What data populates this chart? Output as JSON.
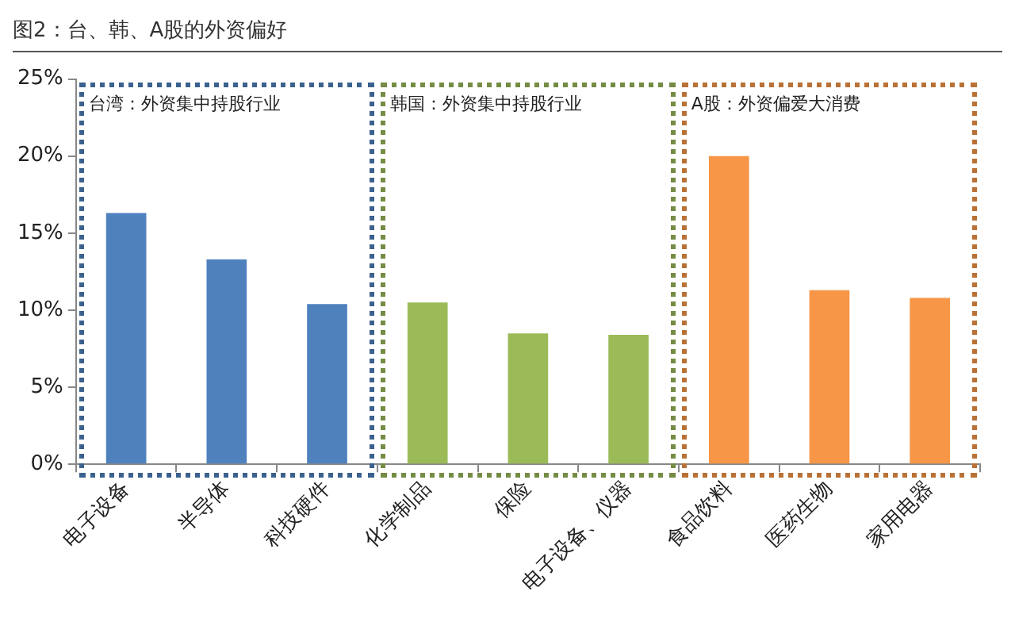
{
  "chart_data": {
    "type": "bar",
    "title": "图2：台、韩、A股的外资偏好",
    "categories": [
      "电子设备",
      "半导体",
      "科技硬件",
      "化学制品",
      "保险",
      "电子设备、仪器",
      "食品饮料",
      "医药生物",
      "家用电器"
    ],
    "values": [
      16.3,
      13.3,
      10.4,
      10.5,
      8.5,
      8.4,
      20.0,
      11.3,
      10.8
    ],
    "colors": [
      "#4f81bd",
      "#4f81bd",
      "#4f81bd",
      "#9bbb59",
      "#9bbb59",
      "#9bbb59",
      "#f79646",
      "#f79646",
      "#f79646"
    ],
    "ylim": [
      0,
      25
    ],
    "yticks": [
      {
        "value": 0,
        "label": "0%"
      },
      {
        "value": 5,
        "label": "5%"
      },
      {
        "value": 10,
        "label": "10%"
      },
      {
        "value": 15,
        "label": "15%"
      },
      {
        "value": 20,
        "label": "20%"
      },
      {
        "value": 25,
        "label": "25%"
      }
    ],
    "grid": false,
    "legend": false,
    "annotations": [
      "台湾：外资集中持股行业",
      "韩国：外资集中持股行业",
      "A股：外资偏爱大消费"
    ]
  }
}
